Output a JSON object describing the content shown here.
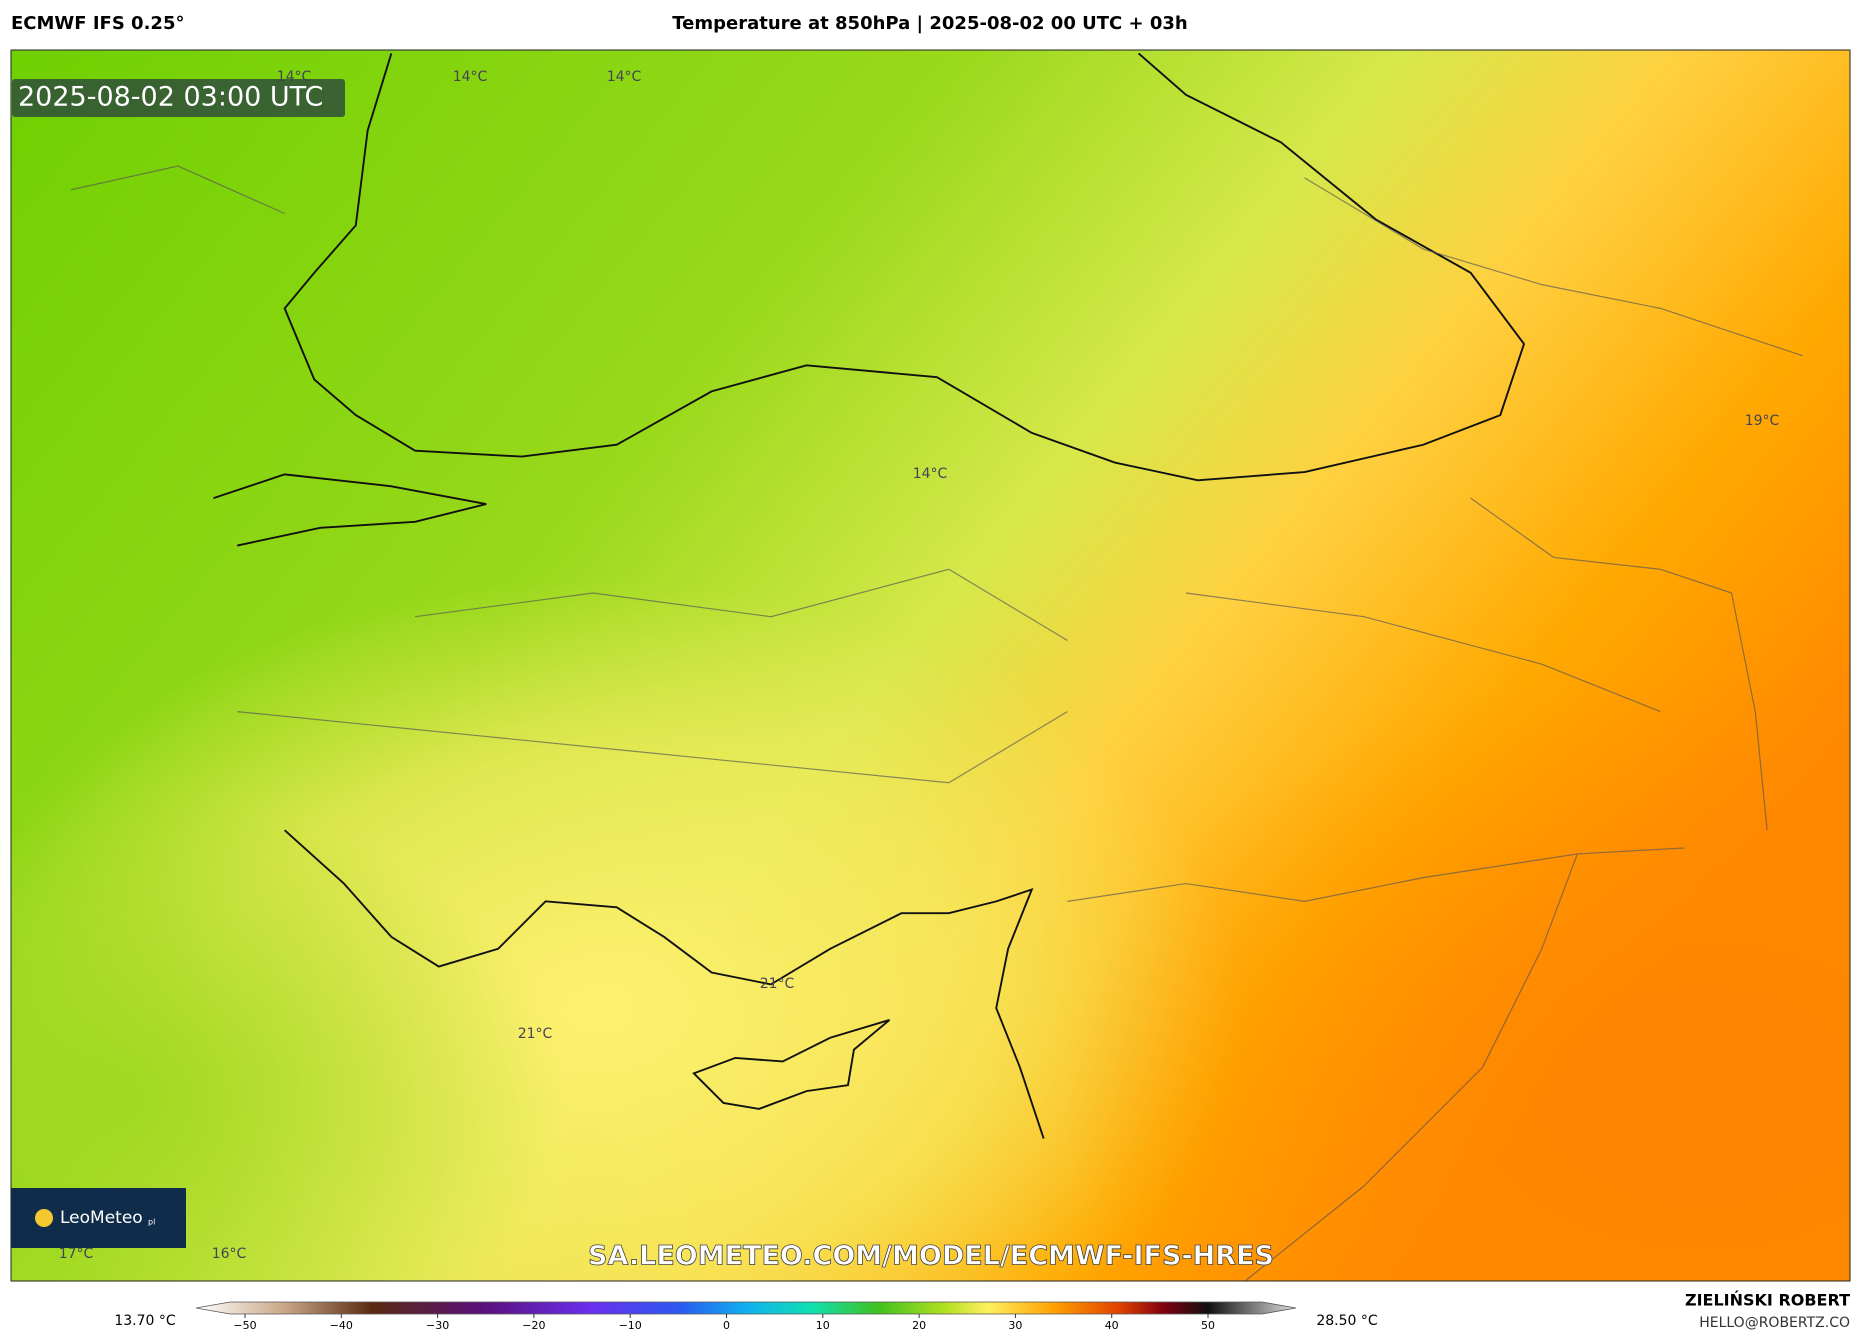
{
  "header": {
    "model": "ECMWF IFS 0.25°",
    "title": "Temperature at 850hPa | 2025-08-02 00 UTC + 03h"
  },
  "map": {
    "timestamp": "2025-08-02 03:00 UTC",
    "labels": [
      "14°C",
      "14°C",
      "14°C",
      "14°C",
      "19°C",
      "21°C",
      "21°C",
      "17°C",
      "16°C"
    ],
    "logo": "LeoMeteo",
    "logo_suffix": "pl",
    "watermark": "SA.LEOMETEO.COM/MODEL/ECMWF-IFS-HRES"
  },
  "colorbar": {
    "min_label": "13.70 °C",
    "max_label": "28.50 °C",
    "ticks": [
      {
        "value": -50,
        "label": "−50"
      },
      {
        "value": -40,
        "label": "−40"
      },
      {
        "value": -30,
        "label": "−30"
      },
      {
        "value": -20,
        "label": "−20"
      },
      {
        "value": -10,
        "label": "−10"
      },
      0,
      10,
      20,
      30,
      40,
      50
    ]
  },
  "footer": {
    "author": "ZIELIŃSKI ROBERT",
    "email": "HELLO@ROBERTZ.CO"
  }
}
